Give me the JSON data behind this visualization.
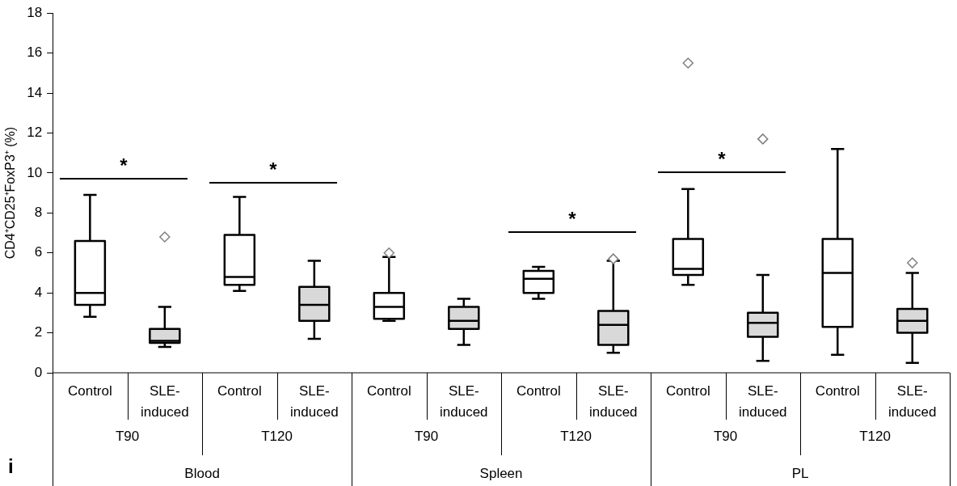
{
  "chart_data": {
    "type": "box",
    "ylabel": "CD4⁺CD25⁺FoxP3⁺ (%)",
    "categories": [
      "Control",
      "SLE-induced",
      "Control",
      "SLE-induced",
      "Control",
      "SLE-induced",
      "Control",
      "SLE-induced",
      "Control",
      "SLE-induced",
      "Control",
      "SLE-induced"
    ],
    "colors": [
      "#ffffff",
      "#d9d9d9",
      "#ffffff",
      "#d9d9d9",
      "#ffffff",
      "#d9d9d9",
      "#ffffff",
      "#d9d9d9",
      "#ffffff",
      "#d9d9d9",
      "#ffffff",
      "#d9d9d9"
    ],
    "boxes": [
      {
        "low": 2.8,
        "q1": 3.4,
        "median": 4.0,
        "q3": 6.6,
        "high": 8.9
      },
      {
        "low": 1.3,
        "q1": 1.5,
        "median": 1.6,
        "q3": 2.2,
        "high": 3.3,
        "outliers": [
          6.8
        ]
      },
      {
        "low": 4.1,
        "q1": 4.4,
        "median": 4.8,
        "q3": 6.9,
        "high": 8.8
      },
      {
        "low": 1.7,
        "q1": 2.6,
        "median": 3.4,
        "q3": 4.3,
        "high": 5.6
      },
      {
        "low": 2.6,
        "q1": 2.7,
        "median": 3.3,
        "q3": 4.0,
        "high": 5.8,
        "outliers": [
          6.0
        ]
      },
      {
        "low": 1.4,
        "q1": 2.2,
        "median": 2.6,
        "q3": 3.3,
        "high": 3.7
      },
      {
        "low": 3.7,
        "q1": 4.0,
        "median": 4.7,
        "q3": 5.1,
        "high": 5.3
      },
      {
        "low": 1.0,
        "q1": 1.4,
        "median": 2.4,
        "q3": 3.1,
        "high": 5.6,
        "outliers": [
          5.7
        ]
      },
      {
        "low": 4.4,
        "q1": 4.9,
        "median": 5.2,
        "q3": 6.7,
        "high": 9.2,
        "outliers": [
          15.5
        ]
      },
      {
        "low": 0.6,
        "q1": 1.8,
        "median": 2.5,
        "q3": 3.0,
        "high": 4.9,
        "outliers": [
          11.7
        ]
      },
      {
        "low": 0.9,
        "q1": 2.3,
        "median": 5.0,
        "q3": 6.7,
        "high": 11.2
      },
      {
        "low": 0.5,
        "q1": 2.0,
        "median": 2.6,
        "q3": 3.2,
        "high": 5.0,
        "outliers": [
          5.5
        ]
      }
    ],
    "marker": "diamond",
    "ylim": [
      0,
      18
    ],
    "yticks": [
      0,
      2,
      4,
      6,
      8,
      10,
      12,
      14,
      16,
      18
    ],
    "grid": false,
    "legend": false,
    "annotations": [
      "*",
      "*",
      "*",
      "*",
      "T90",
      "T120",
      "T90",
      "T120",
      "T90",
      "T120",
      "Blood",
      "Spleen",
      "PL",
      "i"
    ]
  }
}
